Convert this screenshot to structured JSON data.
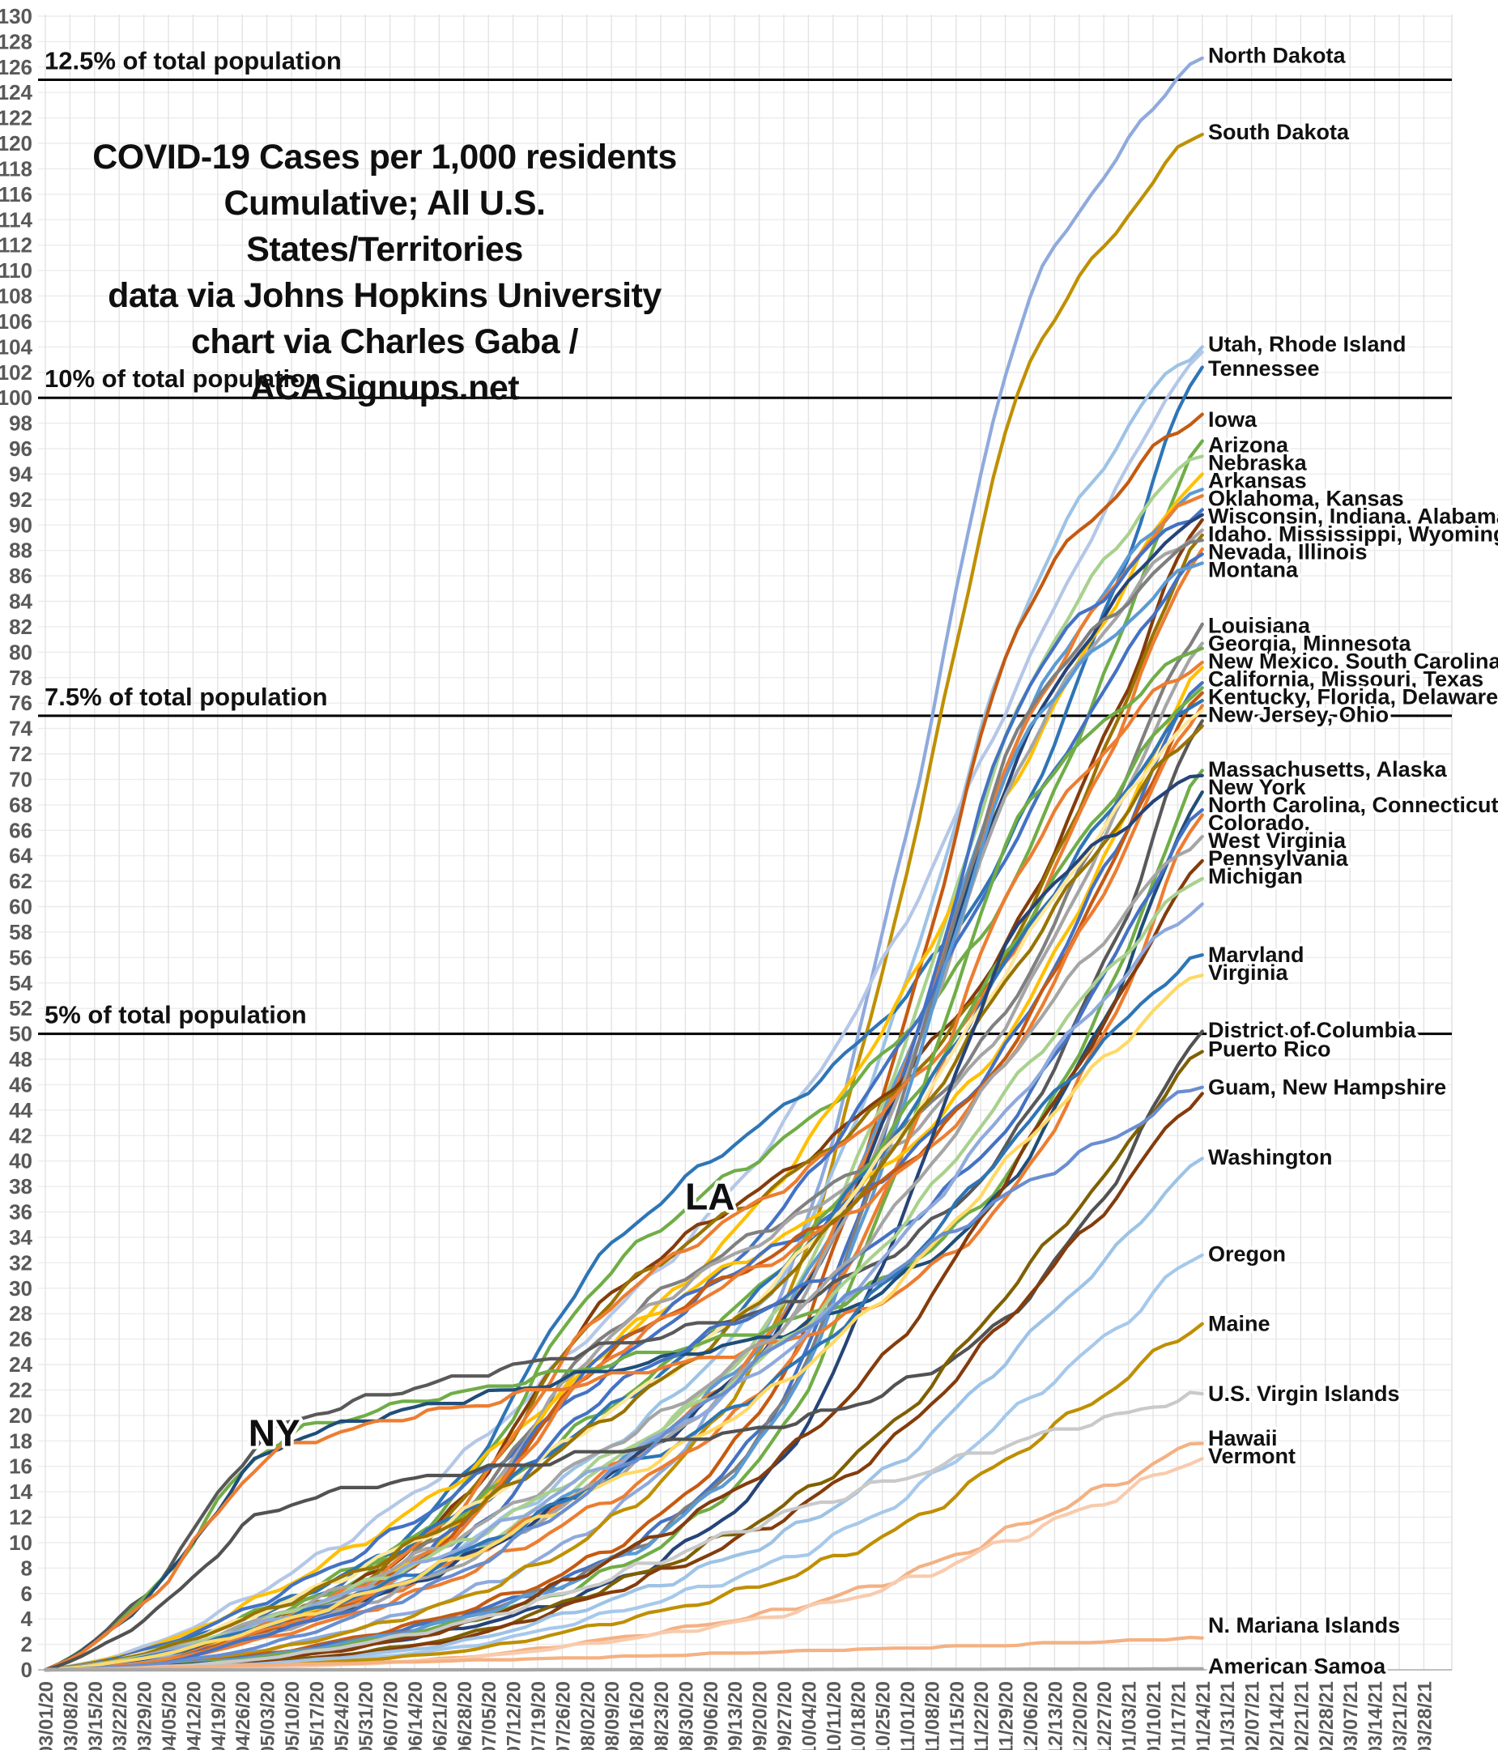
{
  "title": {
    "line1": "COVID-19 Cases per 1,000 residents",
    "line2": "Cumulative; All U.S. States/Territories",
    "line3": "data via Johns Hopkins University",
    "line4": "chart via Charles Gaba / ACASignups.net"
  },
  "colors": {
    "grid_vertical": "#e3e3e3",
    "grid_horizontal": "#ececec",
    "axis_text": "#595959",
    "reference_line": "#000000",
    "label_text": "#111111",
    "axis_baseline": "#bfbfbf"
  },
  "chart_data": {
    "type": "line",
    "title": "COVID-19 Cases per 1,000 residents, Cumulative; All U.S. States/Territories",
    "ylim": [
      0,
      130
    ],
    "y_tick_step": 2,
    "grid": true,
    "x_tick_labels": [
      "03/01/20",
      "03/08/20",
      "03/15/20",
      "03/22/20",
      "03/29/20",
      "04/05/20",
      "04/12/20",
      "04/19/20",
      "04/26/20",
      "05/03/20",
      "05/10/20",
      "05/17/20",
      "05/24/20",
      "05/31/20",
      "06/07/20",
      "06/14/20",
      "06/21/20",
      "06/28/20",
      "07/05/20",
      "07/12/20",
      "07/19/20",
      "07/26/20",
      "08/02/20",
      "08/09/20",
      "08/16/20",
      "08/23/20",
      "08/30/20",
      "09/06/20",
      "09/13/20",
      "09/20/20",
      "09/27/20",
      "10/04/20",
      "10/11/20",
      "10/18/20",
      "10/25/20",
      "11/01/20",
      "11/08/20",
      "11/15/20",
      "11/22/20",
      "11/29/20",
      "12/06/20",
      "12/13/20",
      "12/20/20",
      "12/27/20",
      "01/03/21",
      "01/10/21",
      "01/17/21",
      "01/24/21",
      "01/31/21",
      "02/07/21",
      "02/14/21",
      "02/21/21",
      "02/28/21",
      "03/07/21",
      "03/14/21",
      "03/21/21",
      "03/28/21"
    ],
    "data_end_label": "01/24/21",
    "data_end_week": 47,
    "checkpoint_weeks": [
      0,
      4.43,
      8.71,
      13.14,
      17.43,
      21.86,
      26.29,
      30.57,
      35,
      39.29,
      43.71,
      47
    ],
    "shapes": {
      "MW": [
        0,
        0.004,
        0.012,
        0.028,
        0.05,
        0.085,
        0.145,
        0.26,
        0.52,
        0.82,
        0.94,
        1
      ],
      "MW2": [
        0,
        0.008,
        0.03,
        0.06,
        0.1,
        0.155,
        0.22,
        0.32,
        0.52,
        0.78,
        0.93,
        1
      ],
      "SO": [
        0,
        0.006,
        0.04,
        0.08,
        0.16,
        0.3,
        0.38,
        0.44,
        0.52,
        0.64,
        0.84,
        1
      ],
      "NE": [
        0,
        0.09,
        0.24,
        0.285,
        0.31,
        0.335,
        0.36,
        0.39,
        0.45,
        0.56,
        0.78,
        1
      ],
      "GN": [
        0,
        0.02,
        0.06,
        0.11,
        0.17,
        0.25,
        0.33,
        0.43,
        0.57,
        0.74,
        0.9,
        1
      ],
      "LT": [
        0,
        0.004,
        0.012,
        0.03,
        0.06,
        0.12,
        0.19,
        0.28,
        0.42,
        0.62,
        0.83,
        1
      ],
      "GU": [
        0,
        0.01,
        0.04,
        0.1,
        0.18,
        0.3,
        0.44,
        0.58,
        0.7,
        0.82,
        0.92,
        1
      ],
      "NMI": [
        0,
        0.06,
        0.14,
        0.22,
        0.3,
        0.38,
        0.48,
        0.58,
        0.68,
        0.78,
        0.89,
        1
      ],
      "AS": [
        0,
        0,
        0,
        0,
        0,
        0.1,
        0.25,
        0.35,
        0.5,
        0.65,
        0.8,
        1
      ]
    },
    "series": [
      {
        "name": "North Dakota",
        "color": "#8FAADC",
        "final": 126.7,
        "shape": "MW"
      },
      {
        "name": "South Dakota",
        "color": "#BF9000",
        "final": 120.7,
        "shape": "MW"
      },
      {
        "name": "Utah",
        "color": "#9DC3E6",
        "final": 104.0,
        "shape": "MW2"
      },
      {
        "name": "Rhode Island",
        "color": "#B4C7E7",
        "final": 103.6,
        "shape": "GN"
      },
      {
        "name": "Tennessee",
        "color": "#2E75B6",
        "final": 102.4,
        "shape": "SO"
      },
      {
        "name": "Iowa",
        "color": "#C55A11",
        "final": 98.7,
        "shape": "MW"
      },
      {
        "name": "Arizona",
        "color": "#70AD47",
        "final": 96.6,
        "shape": "SO"
      },
      {
        "name": "Nebraska",
        "color": "#A9D18E",
        "final": 95.4,
        "shape": "MW2"
      },
      {
        "name": "Arkansas",
        "color": "#FFC000",
        "final": 94.0,
        "shape": "GN"
      },
      {
        "name": "Oklahoma",
        "color": "#5B9BD5",
        "final": 92.8,
        "shape": "MW2"
      },
      {
        "name": "Kansas",
        "color": "#ED7D31",
        "final": 92.3,
        "shape": "MW2"
      },
      {
        "name": "Wisconsin",
        "color": "#4472C4",
        "final": 91.2,
        "shape": "MW"
      },
      {
        "name": "Indiana",
        "color": "#264478",
        "final": 90.8,
        "shape": "MW2"
      },
      {
        "name": "Alabama",
        "color": "#843C0C",
        "final": 90.4,
        "shape": "SO"
      },
      {
        "name": "Idaho",
        "color": "#A5A5A5",
        "final": 89.6,
        "shape": "MW2"
      },
      {
        "name": "Mississippi",
        "color": "#997300",
        "final": 89.2,
        "shape": "SO"
      },
      {
        "name": "Wyoming",
        "color": "#7F7F7F",
        "final": 88.8,
        "shape": "MW"
      },
      {
        "name": "Nevada",
        "color": "#ED7D31",
        "final": 88.1,
        "shape": "SO"
      },
      {
        "name": "Illinois",
        "color": "#4472C4",
        "final": 87.7,
        "shape": "GN"
      },
      {
        "name": "Montana",
        "color": "#5B9BD5",
        "final": 87.0,
        "shape": "MW"
      },
      {
        "name": "Louisiana",
        "color": "#808080",
        "final": 82.2,
        "shape": "SO"
      },
      {
        "name": "Georgia",
        "color": "#A5A5A5",
        "final": 80.7,
        "shape": "SO"
      },
      {
        "name": "Minnesota",
        "color": "#70AD47",
        "final": 80.3,
        "shape": "MW"
      },
      {
        "name": "New Mexico",
        "color": "#ED7D31",
        "final": 79.2,
        "shape": "MW2"
      },
      {
        "name": "South Carolina",
        "color": "#FFC000",
        "final": 78.8,
        "shape": "SO"
      },
      {
        "name": "California",
        "color": "#4472C4",
        "final": 77.6,
        "shape": "SO"
      },
      {
        "name": "Missouri",
        "color": "#70AD47",
        "final": 77.2,
        "shape": "GN"
      },
      {
        "name": "Texas",
        "color": "#C55A11",
        "final": 76.8,
        "shape": "SO"
      },
      {
        "name": "Kentucky",
        "color": "#2E75B6",
        "final": 76.2,
        "shape": "GN"
      },
      {
        "name": "Florida",
        "color": "#ED7D31",
        "final": 75.8,
        "shape": "SO"
      },
      {
        "name": "Delaware",
        "color": "#FFE699",
        "final": 75.4,
        "shape": "GN"
      },
      {
        "name": "New Jersey",
        "color": "#595959",
        "final": 74.6,
        "shape": "NE"
      },
      {
        "name": "Ohio",
        "color": "#997300",
        "final": 74.2,
        "shape": "GN"
      },
      {
        "name": "Massachusetts",
        "color": "#70AD47",
        "final": 70.7,
        "shape": "NE"
      },
      {
        "name": "Alaska",
        "color": "#264478",
        "final": 70.3,
        "shape": "MW"
      },
      {
        "name": "New York",
        "color": "#1F4E79",
        "final": 69.0,
        "shape": "NE"
      },
      {
        "name": "North Carolina",
        "color": "#4472C4",
        "final": 67.6,
        "shape": "SO"
      },
      {
        "name": "Connecticut",
        "color": "#ED7D31",
        "final": 67.2,
        "shape": "NE"
      },
      {
        "name": "Colorado",
        "color": "#A5A5A5",
        "final": 65.5,
        "shape": "GN"
      },
      {
        "name": "West Virginia",
        "color": "#843C0C",
        "final": 63.6,
        "shape": "LT"
      },
      {
        "name": "Pennsylvania",
        "color": "#A9D18E",
        "final": 62.2,
        "shape": "GN"
      },
      {
        "name": "Michigan",
        "color": "#8FAADC",
        "final": 60.2,
        "shape": "GN"
      },
      {
        "name": "Maryland",
        "color": "#2E75B6",
        "final": 56.2,
        "shape": "GN"
      },
      {
        "name": "Virginia",
        "color": "#FFD966",
        "final": 54.6,
        "shape": "GN"
      },
      {
        "name": "District of Columbia",
        "color": "#525252",
        "final": 50.2,
        "shape": "NE"
      },
      {
        "name": "Puerto Rico",
        "color": "#7F6000",
        "final": 48.6,
        "shape": "LT"
      },
      {
        "name": "Guam",
        "color": "#698ED0",
        "final": 45.8,
        "shape": "GU"
      },
      {
        "name": "New Hampshire",
        "color": "#843C0C",
        "final": 45.3,
        "shape": "LT"
      },
      {
        "name": "Washington",
        "color": "#9DC3E6",
        "final": 40.2,
        "shape": "LT"
      },
      {
        "name": "Oregon",
        "color": "#A6C9EC",
        "final": 32.6,
        "shape": "LT"
      },
      {
        "name": "Maine",
        "color": "#BF8F00",
        "final": 27.2,
        "shape": "LT"
      },
      {
        "name": "U.S. Virgin Islands",
        "color": "#C9C9C9",
        "final": 21.7,
        "shape": "GU"
      },
      {
        "name": "Hawaii",
        "color": "#F4B183",
        "final": 17.8,
        "shape": "LT"
      },
      {
        "name": "Vermont",
        "color": "#F8CBAD",
        "final": 16.6,
        "shape": "LT"
      },
      {
        "name": "N. Mariana Islands",
        "color": "#F4B183",
        "final": 2.5,
        "shape": "NMI"
      },
      {
        "name": "American Samoa",
        "color": "#A6A6A6",
        "final": 0.08,
        "shape": "AS"
      }
    ],
    "reference_lines": [
      {
        "value": 125,
        "label": "12.5% of total population"
      },
      {
        "value": 100,
        "label": "10% of total population"
      },
      {
        "value": 75,
        "label": "7.5% of total population"
      },
      {
        "value": 50,
        "label": "5% of total population"
      }
    ],
    "annotations": [
      {
        "text": "NY",
        "week": 9.3,
        "value": 17.6
      },
      {
        "text": "LA",
        "week": 27.0,
        "value": 36.2
      }
    ],
    "right_labels": [
      {
        "text": "North Dakota",
        "value": 126.9
      },
      {
        "text": "South Dakota",
        "value": 120.9
      },
      {
        "text": "Utah, Rhode Island",
        "value": 104.2
      },
      {
        "text": "Tennessee",
        "value": 102.3
      },
      {
        "text": "Iowa",
        "value": 98.3
      },
      {
        "text": "Arizona",
        "value": 96.3
      },
      {
        "text": "Nebraska",
        "value": 94.9
      },
      {
        "text": "Arkansas",
        "value": 93.5
      },
      {
        "text": "Oklahoma, Kansas",
        "value": 92.1
      },
      {
        "text": "Wisconsin, Indiana, Alabama",
        "value": 90.7
      },
      {
        "text": "Idaho, Mississippi, Wyoming",
        "value": 89.3
      },
      {
        "text": "Nevada, Illinois",
        "value": 87.9
      },
      {
        "text": "Montana",
        "value": 86.5
      },
      {
        "text": "Louisiana",
        "value": 82.1
      },
      {
        "text": "Georgia, Minnesota",
        "value": 80.7
      },
      {
        "text": "New Mexico, South Carolina",
        "value": 79.3
      },
      {
        "text": "California, Missouri, Texas",
        "value": 77.9
      },
      {
        "text": "Kentucky, Florida, Delaware",
        "value": 76.5
      },
      {
        "text": "New Jersey, Ohio",
        "value": 75.1
      },
      {
        "text": "Massachusetts, Alaska",
        "value": 70.8
      },
      {
        "text": "New York",
        "value": 69.4
      },
      {
        "text": "North Carolina, Connecticut",
        "value": 68.0
      },
      {
        "text": "Colorado,",
        "value": 66.6
      },
      {
        "text": "West Virginia",
        "value": 65.2
      },
      {
        "text": "Pennsylvania",
        "value": 63.8
      },
      {
        "text": "Michigan",
        "value": 62.4
      },
      {
        "text": "Maryland",
        "value": 56.2
      },
      {
        "text": "Virginia",
        "value": 54.8
      },
      {
        "text": "District of Columbia",
        "value": 50.3
      },
      {
        "text": "Puerto Rico",
        "value": 48.8
      },
      {
        "text": "Guam, New Hampshire",
        "value": 45.8
      },
      {
        "text": "Washington",
        "value": 40.3
      },
      {
        "text": "Oregon",
        "value": 32.7
      },
      {
        "text": "Maine",
        "value": 27.2
      },
      {
        "text": "U.S. Virgin Islands",
        "value": 21.7
      },
      {
        "text": "Hawaii",
        "value": 18.2
      },
      {
        "text": "Vermont",
        "value": 16.8
      },
      {
        "text": "N. Mariana Islands",
        "value": 3.5
      },
      {
        "text": "American Samoa",
        "value": 0.3
      }
    ]
  }
}
